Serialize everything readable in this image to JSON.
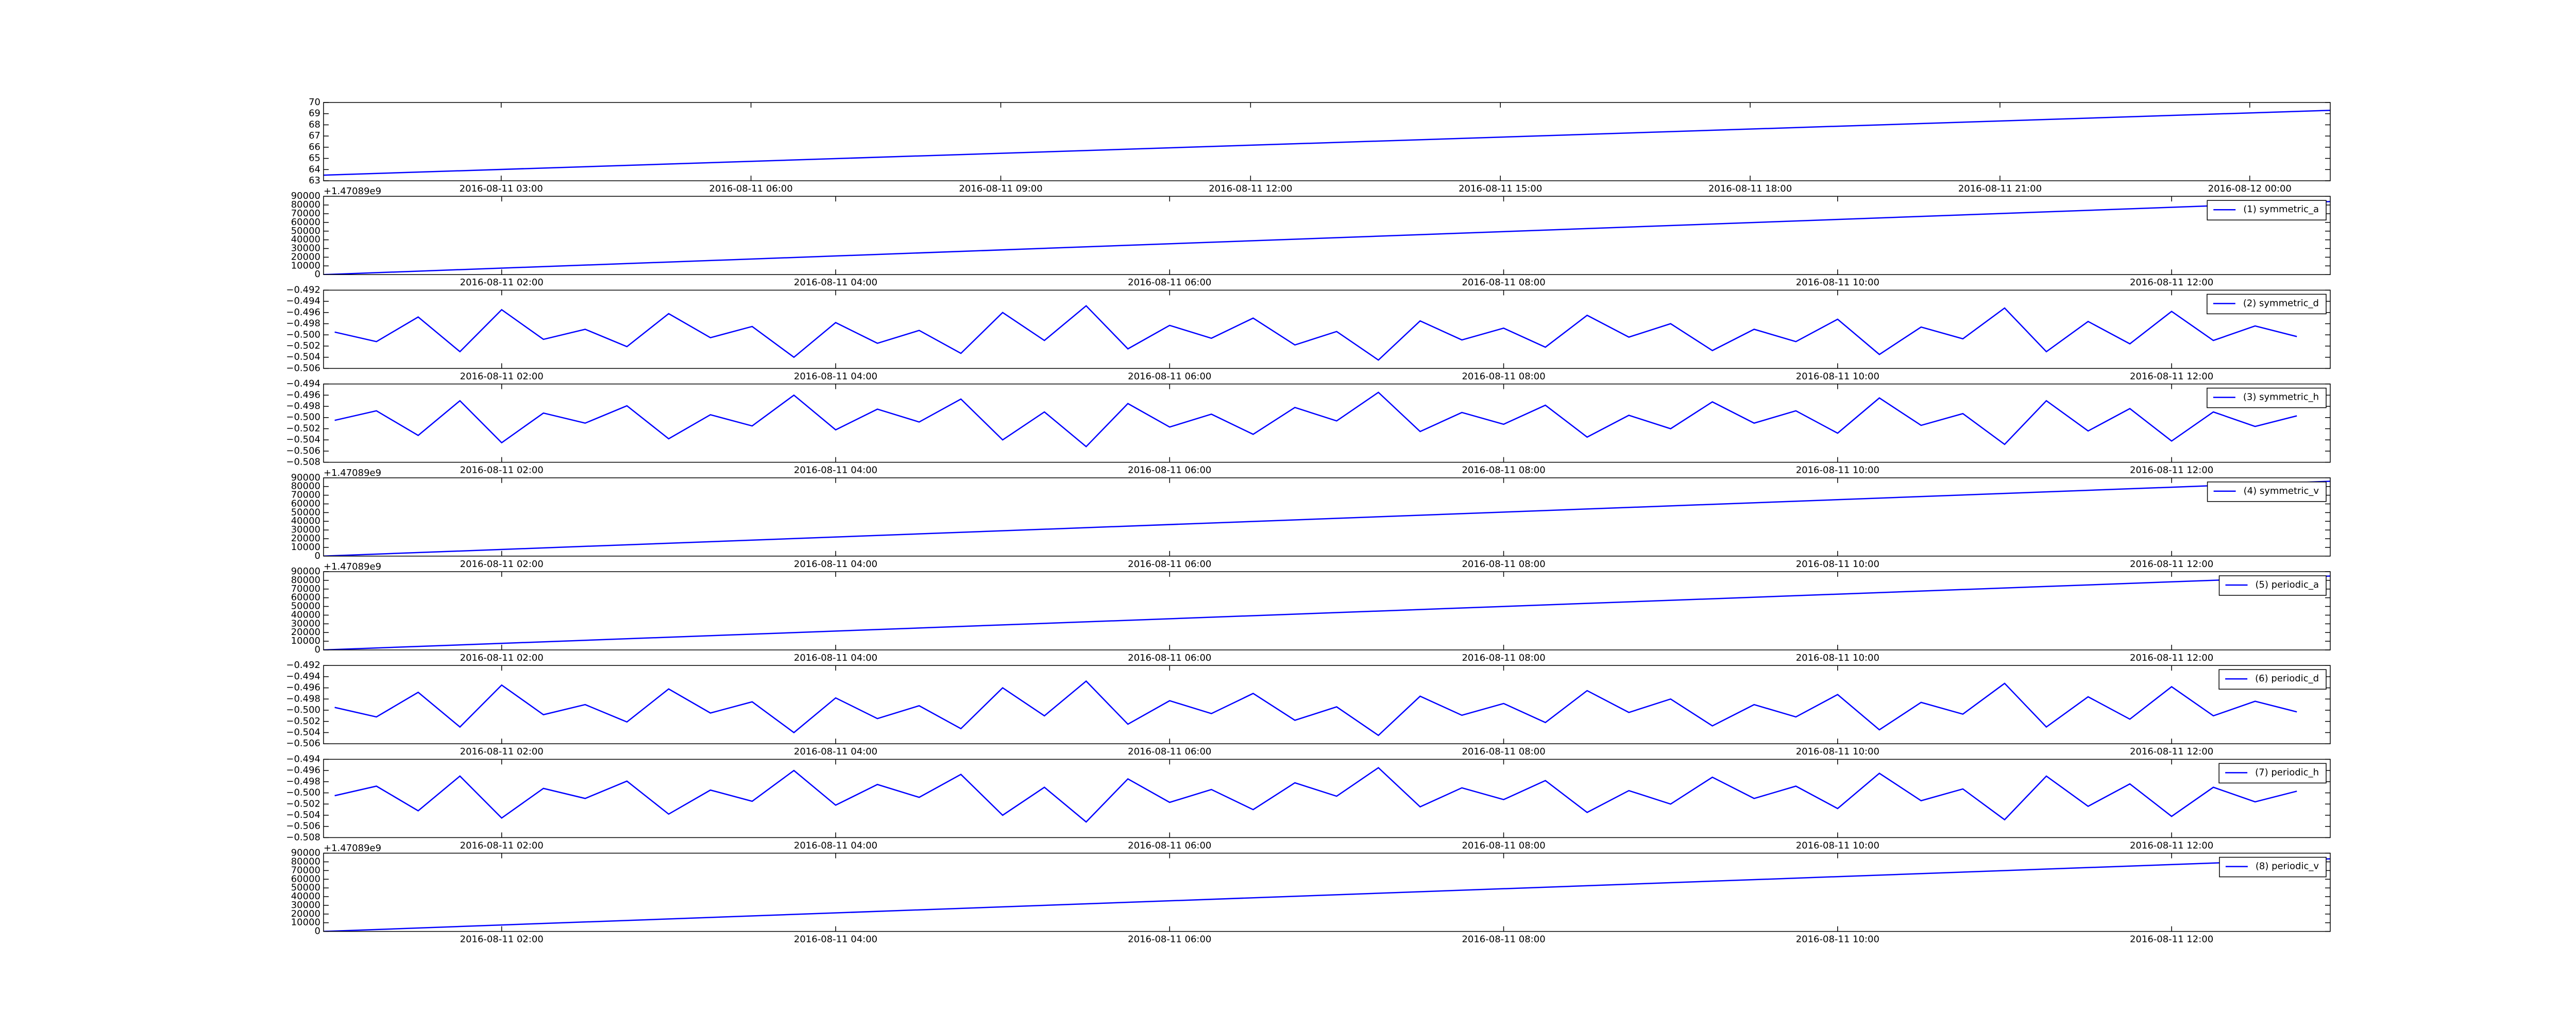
{
  "chart_data": [
    {
      "type": "line",
      "x": [
        "2016-08-11 00:52",
        "2016-08-12 00:58"
      ],
      "xlim": [
        "2016-08-11 00:52",
        "2016-08-12 00:58"
      ],
      "xticks": [
        "2016-08-11 03:00",
        "2016-08-11 06:00",
        "2016-08-11 09:00",
        "2016-08-11 12:00",
        "2016-08-11 15:00",
        "2016-08-11 18:00",
        "2016-08-11 21:00",
        "2016-08-12 00:00"
      ],
      "ylim": [
        63,
        70
      ],
      "yticks": [
        63,
        64,
        65,
        66,
        67,
        68,
        69,
        70
      ],
      "series": [
        {
          "color": "#0000ff",
          "values": [
            63.5,
            69.3
          ]
        }
      ]
    },
    {
      "type": "line",
      "x": [
        "2016-08-11 00:56",
        "2016-08-11 12:57"
      ],
      "xlim": [
        "2016-08-11 00:56",
        "2016-08-11 12:57"
      ],
      "xticks": [
        "2016-08-11 02:00",
        "2016-08-11 04:00",
        "2016-08-11 06:00",
        "2016-08-11 08:00",
        "2016-08-11 10:00",
        "2016-08-11 12:00"
      ],
      "ylim": [
        0,
        90000
      ],
      "yticks": [
        0,
        10000,
        20000,
        30000,
        40000,
        50000,
        60000,
        70000,
        80000,
        90000
      ],
      "y_offset": "+1.47089e9",
      "legend": "upper right",
      "series": [
        {
          "name": "(1) symmetric_a",
          "color": "#0000ff",
          "values": [
            0,
            84000
          ]
        }
      ]
    },
    {
      "type": "line",
      "x": [
        "2016-08-11 01:00",
        "2016-08-11 01:15",
        "2016-08-11 01:30",
        "2016-08-11 01:45",
        "2016-08-11 02:00",
        "2016-08-11 02:15",
        "2016-08-11 02:30",
        "2016-08-11 02:45",
        "2016-08-11 03:00",
        "2016-08-11 03:15",
        "2016-08-11 03:30",
        "2016-08-11 03:45",
        "2016-08-11 04:00",
        "2016-08-11 04:15",
        "2016-08-11 04:30",
        "2016-08-11 04:45",
        "2016-08-11 05:00",
        "2016-08-11 05:15",
        "2016-08-11 05:30",
        "2016-08-11 05:45",
        "2016-08-11 06:00",
        "2016-08-11 06:15",
        "2016-08-11 06:30",
        "2016-08-11 06:45",
        "2016-08-11 07:00",
        "2016-08-11 07:15",
        "2016-08-11 07:30",
        "2016-08-11 07:45",
        "2016-08-11 08:00",
        "2016-08-11 08:15",
        "2016-08-11 08:30",
        "2016-08-11 08:45",
        "2016-08-11 09:00",
        "2016-08-11 09:15",
        "2016-08-11 09:30",
        "2016-08-11 09:45",
        "2016-08-11 10:00",
        "2016-08-11 10:15",
        "2016-08-11 10:30",
        "2016-08-11 10:45",
        "2016-08-11 11:00",
        "2016-08-11 11:15",
        "2016-08-11 11:30",
        "2016-08-11 11:45",
        "2016-08-11 12:00",
        "2016-08-11 12:15",
        "2016-08-11 12:30",
        "2016-08-11 12:45"
      ],
      "xlim": [
        "2016-08-11 00:56",
        "2016-08-11 12:57"
      ],
      "xticks": [
        "2016-08-11 02:00",
        "2016-08-11 04:00",
        "2016-08-11 06:00",
        "2016-08-11 08:00",
        "2016-08-11 10:00",
        "2016-08-11 12:00"
      ],
      "ylim": [
        -0.506,
        -0.492
      ],
      "yticks": [
        {
          "value": -0.506,
          "label": "−0.506"
        },
        {
          "value": -0.504,
          "label": "−0.504"
        },
        {
          "value": -0.502,
          "label": "−0.502"
        },
        {
          "value": -0.5,
          "label": "−0.500"
        },
        {
          "value": -0.498,
          "label": "−0.498"
        },
        {
          "value": -0.496,
          "label": "−0.496"
        },
        {
          "value": -0.494,
          "label": "−0.494"
        },
        {
          "value": -0.492,
          "label": "−0.492"
        }
      ],
      "legend": "upper right",
      "series": [
        {
          "name": "(2) symmetric_d",
          "color": "#0000ff",
          "values": [
            -0.4995,
            -0.5012,
            -0.4968,
            -0.503,
            -0.4955,
            -0.5008,
            -0.499,
            -0.5021,
            -0.4962,
            -0.5005,
            -0.4985,
            -0.504,
            -0.4978,
            -0.5015,
            -0.4992,
            -0.5033,
            -0.496,
            -0.501,
            -0.4948,
            -0.5025,
            -0.4983,
            -0.5006,
            -0.497,
            -0.5018,
            -0.4994,
            -0.5045,
            -0.4975,
            -0.5009,
            -0.4988,
            -0.5022,
            -0.4965,
            -0.5004,
            -0.498,
            -0.5028,
            -0.499,
            -0.5012,
            -0.4972,
            -0.5035,
            -0.4986,
            -0.5007,
            -0.4952,
            -0.503,
            -0.4976,
            -0.5016,
            -0.4958,
            -0.501,
            -0.4984,
            -0.5003
          ]
        }
      ]
    },
    {
      "type": "line",
      "x": [
        "2016-08-11 01:00",
        "2016-08-11 01:15",
        "2016-08-11 01:30",
        "2016-08-11 01:45",
        "2016-08-11 02:00",
        "2016-08-11 02:15",
        "2016-08-11 02:30",
        "2016-08-11 02:45",
        "2016-08-11 03:00",
        "2016-08-11 03:15",
        "2016-08-11 03:30",
        "2016-08-11 03:45",
        "2016-08-11 04:00",
        "2016-08-11 04:15",
        "2016-08-11 04:30",
        "2016-08-11 04:45",
        "2016-08-11 05:00",
        "2016-08-11 05:15",
        "2016-08-11 05:30",
        "2016-08-11 05:45",
        "2016-08-11 06:00",
        "2016-08-11 06:15",
        "2016-08-11 06:30",
        "2016-08-11 06:45",
        "2016-08-11 07:00",
        "2016-08-11 07:15",
        "2016-08-11 07:30",
        "2016-08-11 07:45",
        "2016-08-11 08:00",
        "2016-08-11 08:15",
        "2016-08-11 08:30",
        "2016-08-11 08:45",
        "2016-08-11 09:00",
        "2016-08-11 09:15",
        "2016-08-11 09:30",
        "2016-08-11 09:45",
        "2016-08-11 10:00",
        "2016-08-11 10:15",
        "2016-08-11 10:30",
        "2016-08-11 10:45",
        "2016-08-11 11:00",
        "2016-08-11 11:15",
        "2016-08-11 11:30",
        "2016-08-11 11:45",
        "2016-08-11 12:00",
        "2016-08-11 12:15",
        "2016-08-11 12:30",
        "2016-08-11 12:45"
      ],
      "xlim": [
        "2016-08-11 00:56",
        "2016-08-11 12:57"
      ],
      "xticks": [
        "2016-08-11 02:00",
        "2016-08-11 04:00",
        "2016-08-11 06:00",
        "2016-08-11 08:00",
        "2016-08-11 10:00",
        "2016-08-11 12:00"
      ],
      "ylim": [
        -0.508,
        -0.494
      ],
      "yticks": [
        {
          "value": -0.508,
          "label": "−0.508"
        },
        {
          "value": -0.506,
          "label": "−0.506"
        },
        {
          "value": -0.504,
          "label": "−0.504"
        },
        {
          "value": -0.502,
          "label": "−0.502"
        },
        {
          "value": -0.5,
          "label": "−0.500"
        },
        {
          "value": -0.498,
          "label": "−0.498"
        },
        {
          "value": -0.496,
          "label": "−0.496"
        },
        {
          "value": -0.494,
          "label": "−0.494"
        }
      ],
      "legend": "upper right",
      "series": [
        {
          "name": "(3) symmetric_h",
          "color": "#0000ff",
          "values": [
            -0.5005,
            -0.4988,
            -0.5032,
            -0.497,
            -0.5045,
            -0.4992,
            -0.501,
            -0.4979,
            -0.5038,
            -0.4995,
            -0.5015,
            -0.496,
            -0.5022,
            -0.4985,
            -0.5008,
            -0.4967,
            -0.504,
            -0.499,
            -0.5052,
            -0.4975,
            -0.5017,
            -0.4994,
            -0.503,
            -0.4982,
            -0.5006,
            -0.4955,
            -0.5025,
            -0.4991,
            -0.5012,
            -0.4978,
            -0.5035,
            -0.4996,
            -0.502,
            -0.4972,
            -0.501,
            -0.4988,
            -0.5028,
            -0.4965,
            -0.5014,
            -0.4993,
            -0.5048,
            -0.497,
            -0.5024,
            -0.4984,
            -0.5042,
            -0.499,
            -0.5016,
            -0.4997
          ]
        }
      ]
    },
    {
      "type": "line",
      "x": [
        "2016-08-11 00:56",
        "2016-08-11 12:57"
      ],
      "xlim": [
        "2016-08-11 00:56",
        "2016-08-11 12:57"
      ],
      "xticks": [
        "2016-08-11 02:00",
        "2016-08-11 04:00",
        "2016-08-11 06:00",
        "2016-08-11 08:00",
        "2016-08-11 10:00",
        "2016-08-11 12:00"
      ],
      "ylim": [
        0,
        90000
      ],
      "yticks": [
        0,
        10000,
        20000,
        30000,
        40000,
        50000,
        60000,
        70000,
        80000,
        90000
      ],
      "y_offset": "+1.47089e9",
      "legend": "upper right",
      "series": [
        {
          "name": "(4) symmetric_v",
          "color": "#0000ff",
          "values": [
            0,
            86000
          ]
        }
      ]
    },
    {
      "type": "line",
      "x": [
        "2016-08-11 00:56",
        "2016-08-11 12:57"
      ],
      "xlim": [
        "2016-08-11 00:56",
        "2016-08-11 12:57"
      ],
      "xticks": [
        "2016-08-11 02:00",
        "2016-08-11 04:00",
        "2016-08-11 06:00",
        "2016-08-11 08:00",
        "2016-08-11 10:00",
        "2016-08-11 12:00"
      ],
      "ylim": [
        0,
        90000
      ],
      "yticks": [
        0,
        10000,
        20000,
        30000,
        40000,
        50000,
        60000,
        70000,
        80000,
        90000
      ],
      "y_offset": "+1.47089e9",
      "legend": "upper right",
      "series": [
        {
          "name": "(5) periodic_a",
          "color": "#0000ff",
          "values": [
            0,
            85000
          ]
        }
      ]
    },
    {
      "type": "line",
      "x": [
        "2016-08-11 01:00",
        "2016-08-11 01:15",
        "2016-08-11 01:30",
        "2016-08-11 01:45",
        "2016-08-11 02:00",
        "2016-08-11 02:15",
        "2016-08-11 02:30",
        "2016-08-11 02:45",
        "2016-08-11 03:00",
        "2016-08-11 03:15",
        "2016-08-11 03:30",
        "2016-08-11 03:45",
        "2016-08-11 04:00",
        "2016-08-11 04:15",
        "2016-08-11 04:30",
        "2016-08-11 04:45",
        "2016-08-11 05:00",
        "2016-08-11 05:15",
        "2016-08-11 05:30",
        "2016-08-11 05:45",
        "2016-08-11 06:00",
        "2016-08-11 06:15",
        "2016-08-11 06:30",
        "2016-08-11 06:45",
        "2016-08-11 07:00",
        "2016-08-11 07:15",
        "2016-08-11 07:30",
        "2016-08-11 07:45",
        "2016-08-11 08:00",
        "2016-08-11 08:15",
        "2016-08-11 08:30",
        "2016-08-11 08:45",
        "2016-08-11 09:00",
        "2016-08-11 09:15",
        "2016-08-11 09:30",
        "2016-08-11 09:45",
        "2016-08-11 10:00",
        "2016-08-11 10:15",
        "2016-08-11 10:30",
        "2016-08-11 10:45",
        "2016-08-11 11:00",
        "2016-08-11 11:15",
        "2016-08-11 11:30",
        "2016-08-11 11:45",
        "2016-08-11 12:00",
        "2016-08-11 12:15",
        "2016-08-11 12:30",
        "2016-08-11 12:45"
      ],
      "xlim": [
        "2016-08-11 00:56",
        "2016-08-11 12:57"
      ],
      "xticks": [
        "2016-08-11 02:00",
        "2016-08-11 04:00",
        "2016-08-11 06:00",
        "2016-08-11 08:00",
        "2016-08-11 10:00",
        "2016-08-11 12:00"
      ],
      "ylim": [
        -0.506,
        -0.492
      ],
      "yticks": [
        {
          "value": -0.506,
          "label": "−0.506"
        },
        {
          "value": -0.504,
          "label": "−0.504"
        },
        {
          "value": -0.502,
          "label": "−0.502"
        },
        {
          "value": -0.5,
          "label": "−0.500"
        },
        {
          "value": -0.498,
          "label": "−0.498"
        },
        {
          "value": -0.496,
          "label": "−0.496"
        },
        {
          "value": -0.494,
          "label": "−0.494"
        },
        {
          "value": -0.492,
          "label": "−0.492"
        }
      ],
      "legend": "upper right",
      "series": [
        {
          "name": "(6) periodic_d",
          "color": "#0000ff",
          "values": [
            -0.4995,
            -0.5012,
            -0.4968,
            -0.503,
            -0.4955,
            -0.5008,
            -0.499,
            -0.5021,
            -0.4962,
            -0.5005,
            -0.4985,
            -0.504,
            -0.4978,
            -0.5015,
            -0.4992,
            -0.5033,
            -0.496,
            -0.501,
            -0.4948,
            -0.5025,
            -0.4983,
            -0.5006,
            -0.497,
            -0.5018,
            -0.4994,
            -0.5045,
            -0.4975,
            -0.5009,
            -0.4988,
            -0.5022,
            -0.4965,
            -0.5004,
            -0.498,
            -0.5028,
            -0.499,
            -0.5012,
            -0.4972,
            -0.5035,
            -0.4986,
            -0.5007,
            -0.4952,
            -0.503,
            -0.4976,
            -0.5016,
            -0.4958,
            -0.501,
            -0.4984,
            -0.5003
          ]
        }
      ]
    },
    {
      "type": "line",
      "x": [
        "2016-08-11 01:00",
        "2016-08-11 01:15",
        "2016-08-11 01:30",
        "2016-08-11 01:45",
        "2016-08-11 02:00",
        "2016-08-11 02:15",
        "2016-08-11 02:30",
        "2016-08-11 02:45",
        "2016-08-11 03:00",
        "2016-08-11 03:15",
        "2016-08-11 03:30",
        "2016-08-11 03:45",
        "2016-08-11 04:00",
        "2016-08-11 04:15",
        "2016-08-11 04:30",
        "2016-08-11 04:45",
        "2016-08-11 05:00",
        "2016-08-11 05:15",
        "2016-08-11 05:30",
        "2016-08-11 05:45",
        "2016-08-11 06:00",
        "2016-08-11 06:15",
        "2016-08-11 06:30",
        "2016-08-11 06:45",
        "2016-08-11 07:00",
        "2016-08-11 07:15",
        "2016-08-11 07:30",
        "2016-08-11 07:45",
        "2016-08-11 08:00",
        "2016-08-11 08:15",
        "2016-08-11 08:30",
        "2016-08-11 08:45",
        "2016-08-11 09:00",
        "2016-08-11 09:15",
        "2016-08-11 09:30",
        "2016-08-11 09:45",
        "2016-08-11 10:00",
        "2016-08-11 10:15",
        "2016-08-11 10:30",
        "2016-08-11 10:45",
        "2016-08-11 11:00",
        "2016-08-11 11:15",
        "2016-08-11 11:30",
        "2016-08-11 11:45",
        "2016-08-11 12:00",
        "2016-08-11 12:15",
        "2016-08-11 12:30",
        "2016-08-11 12:45"
      ],
      "xlim": [
        "2016-08-11 00:56",
        "2016-08-11 12:57"
      ],
      "xticks": [
        "2016-08-11 02:00",
        "2016-08-11 04:00",
        "2016-08-11 06:00",
        "2016-08-11 08:00",
        "2016-08-11 10:00",
        "2016-08-11 12:00"
      ],
      "ylim": [
        -0.508,
        -0.494
      ],
      "yticks": [
        {
          "value": -0.508,
          "label": "−0.508"
        },
        {
          "value": -0.506,
          "label": "−0.506"
        },
        {
          "value": -0.504,
          "label": "−0.504"
        },
        {
          "value": -0.502,
          "label": "−0.502"
        },
        {
          "value": -0.5,
          "label": "−0.500"
        },
        {
          "value": -0.498,
          "label": "−0.498"
        },
        {
          "value": -0.496,
          "label": "−0.496"
        },
        {
          "value": -0.494,
          "label": "−0.494"
        }
      ],
      "legend": "upper right",
      "series": [
        {
          "name": "(7) periodic_h",
          "color": "#0000ff",
          "values": [
            -0.5005,
            -0.4988,
            -0.5032,
            -0.497,
            -0.5045,
            -0.4992,
            -0.501,
            -0.4979,
            -0.5038,
            -0.4995,
            -0.5015,
            -0.496,
            -0.5022,
            -0.4985,
            -0.5008,
            -0.4967,
            -0.504,
            -0.499,
            -0.5052,
            -0.4975,
            -0.5017,
            -0.4994,
            -0.503,
            -0.4982,
            -0.5006,
            -0.4955,
            -0.5025,
            -0.4991,
            -0.5012,
            -0.4978,
            -0.5035,
            -0.4996,
            -0.502,
            -0.4972,
            -0.501,
            -0.4988,
            -0.5028,
            -0.4965,
            -0.5014,
            -0.4993,
            -0.5048,
            -0.497,
            -0.5024,
            -0.4984,
            -0.5042,
            -0.499,
            -0.5016,
            -0.4997
          ]
        }
      ]
    },
    {
      "type": "line",
      "x": [
        "2016-08-11 00:56",
        "2016-08-11 12:57"
      ],
      "xlim": [
        "2016-08-11 00:56",
        "2016-08-11 12:57"
      ],
      "xticks": [
        "2016-08-11 02:00",
        "2016-08-11 04:00",
        "2016-08-11 06:00",
        "2016-08-11 08:00",
        "2016-08-11 10:00",
        "2016-08-11 12:00"
      ],
      "ylim": [
        0,
        90000
      ],
      "yticks": [
        0,
        10000,
        20000,
        30000,
        40000,
        50000,
        60000,
        70000,
        80000,
        90000
      ],
      "y_offset": "+1.47089e9",
      "legend": "upper right",
      "series": [
        {
          "name": "(8) periodic_v",
          "color": "#0000ff",
          "values": [
            0,
            83500
          ]
        }
      ]
    }
  ]
}
